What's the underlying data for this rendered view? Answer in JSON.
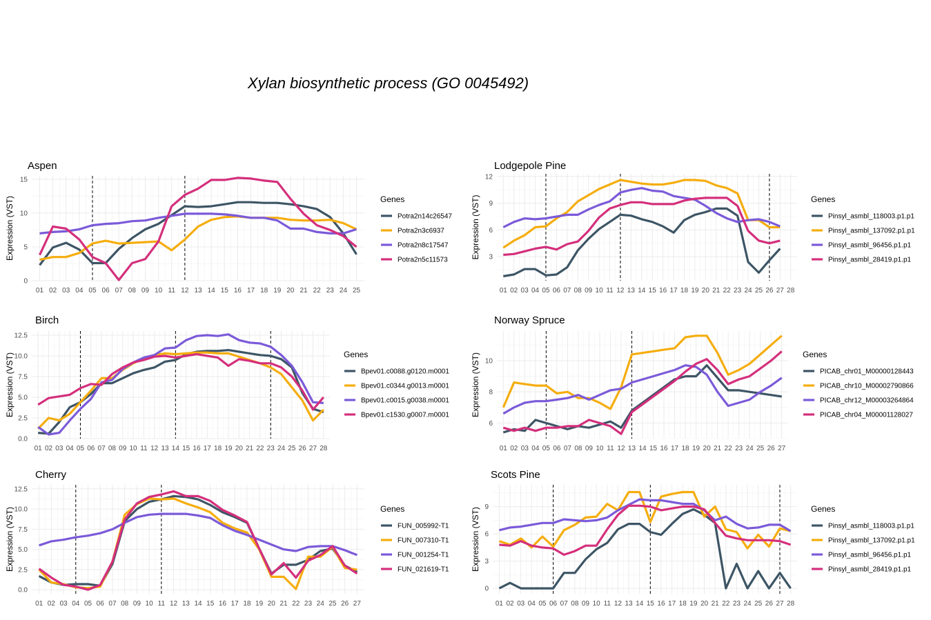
{
  "title": "Xylan biosynthetic process  (GO 0045492)",
  "colors": [
    "#3d5565",
    "#f5ad0e",
    "#7b5ad9",
    "#d42f7c"
  ],
  "chart_data": [
    {
      "type": "line",
      "title": "Aspen",
      "ylabel": "Expression (VST)",
      "legend_title": "Genes",
      "legend_position": "right",
      "grid": true,
      "x": [
        "01",
        "02",
        "03",
        "04",
        "05",
        "06",
        "07",
        "08",
        "09",
        "10",
        "11",
        "12",
        "13",
        "14",
        "15",
        "16",
        "17",
        "18",
        "19",
        "20",
        "21",
        "22",
        "23",
        "24",
        "25"
      ],
      "ylim": [
        0,
        15.5
      ],
      "yticks": [
        0,
        5,
        10,
        15
      ],
      "ytick_labels": [
        "0",
        "5",
        "10",
        "15"
      ],
      "vlines": [
        "05",
        "12"
      ],
      "series": [
        {
          "name": "Potra2n14c26547",
          "values": [
            2.3,
            4.9,
            5.6,
            4.6,
            2.6,
            2.6,
            4.7,
            6.3,
            7.6,
            8.4,
            9.7,
            11.0,
            10.9,
            11.0,
            11.3,
            11.6,
            11.6,
            11.5,
            11.5,
            11.3,
            11.0,
            10.6,
            9.4,
            7.0,
            3.9
          ]
        },
        {
          "name": "Potra2n3c6937",
          "values": [
            3.1,
            3.5,
            3.5,
            4.1,
            5.5,
            5.9,
            5.5,
            5.6,
            5.7,
            5.8,
            4.5,
            6.1,
            8.0,
            9.0,
            9.4,
            9.5,
            9.3,
            9.3,
            9.3,
            9.0,
            8.9,
            8.9,
            9.0,
            8.5,
            7.6
          ]
        },
        {
          "name": "Potra2n8c17547",
          "values": [
            7.0,
            7.2,
            7.3,
            7.6,
            8.2,
            8.4,
            8.5,
            8.8,
            8.9,
            9.3,
            9.6,
            9.9,
            9.9,
            9.9,
            9.8,
            9.6,
            9.3,
            9.3,
            8.9,
            7.7,
            7.7,
            7.2,
            7.0,
            7.0,
            7.6
          ]
        },
        {
          "name": "Potra2n5c11573",
          "values": [
            3.8,
            8.0,
            7.7,
            6.1,
            3.5,
            2.6,
            0.1,
            2.6,
            3.2,
            5.8,
            11.0,
            12.7,
            13.6,
            14.9,
            14.9,
            15.2,
            15.1,
            14.8,
            14.6,
            12.1,
            9.9,
            8.2,
            7.5,
            6.6,
            5.0
          ]
        }
      ]
    },
    {
      "type": "line",
      "title": "Lodgepole Pine",
      "ylabel": "Expression (VST)",
      "legend_title": "Genes",
      "legend_position": "right",
      "grid": true,
      "x": [
        "01",
        "02",
        "03",
        "04",
        "05",
        "06",
        "07",
        "08",
        "09",
        "10",
        "11",
        "12",
        "13",
        "14",
        "15",
        "16",
        "17",
        "18",
        "19",
        "20",
        "21",
        "22",
        "23",
        "24",
        "25",
        "26",
        "27",
        "28"
      ],
      "ylim": [
        0.3,
        12.3
      ],
      "yticks": [
        3,
        6,
        9,
        12
      ],
      "ytick_labels": [
        "3",
        "6",
        "9",
        "12"
      ],
      "vlines": [
        "05",
        "12",
        "26"
      ],
      "series": [
        {
          "name": "Pinsyl_asmbl_118003.p1.p1",
          "values": [
            0.8,
            1.0,
            1.6,
            1.6,
            0.9,
            1.0,
            1.8,
            3.7,
            5.0,
            6.1,
            6.9,
            7.7,
            7.6,
            7.2,
            6.9,
            6.4,
            5.7,
            7.1,
            7.7,
            8.0,
            8.4,
            8.4,
            7.6,
            2.4,
            1.2,
            2.6,
            3.9,
            null
          ]
        },
        {
          "name": "Pinsyl_asmbl_137092.p1.p1",
          "values": [
            4.0,
            4.8,
            5.4,
            6.3,
            6.4,
            7.3,
            8.0,
            9.2,
            9.9,
            10.6,
            11.1,
            11.6,
            11.4,
            11.2,
            11.1,
            11.1,
            11.3,
            11.6,
            11.6,
            11.5,
            11.0,
            10.7,
            10.1,
            7.1,
            7.1,
            6.3,
            6.3,
            null
          ]
        },
        {
          "name": "Pinsyl_asmbl_96456.p1.p1",
          "values": [
            6.3,
            6.9,
            7.3,
            7.2,
            7.3,
            7.5,
            7.7,
            7.7,
            8.3,
            8.8,
            9.2,
            10.2,
            10.5,
            10.7,
            10.4,
            10.3,
            9.8,
            9.6,
            9.4,
            8.7,
            7.9,
            7.3,
            6.9,
            7.1,
            7.2,
            6.9,
            6.4,
            null
          ]
        },
        {
          "name": "Pinsyl_asmbl_28419.p1.p1",
          "values": [
            3.2,
            3.3,
            3.6,
            3.9,
            4.1,
            3.8,
            4.4,
            4.7,
            5.9,
            7.4,
            8.4,
            8.8,
            9.1,
            9.1,
            8.9,
            8.9,
            8.9,
            9.3,
            9.5,
            9.6,
            9.6,
            9.6,
            8.7,
            5.9,
            4.8,
            4.5,
            4.8,
            null
          ]
        }
      ]
    },
    {
      "type": "line",
      "title": "Birch",
      "ylabel": "Expression (VST)",
      "legend_title": "Genes",
      "legend_position": "right",
      "grid": true,
      "x": [
        "01",
        "02",
        "03",
        "04",
        "05",
        "06",
        "07",
        "08",
        "09",
        "10",
        "11",
        "12",
        "13",
        "14",
        "15",
        "16",
        "17",
        "18",
        "19",
        "20",
        "21",
        "22",
        "23",
        "24",
        "25",
        "26",
        "27",
        "28"
      ],
      "ylim": [
        0,
        13
      ],
      "yticks": [
        0,
        2.5,
        5,
        7.5,
        10,
        12.5
      ],
      "ytick_labels": [
        "0.0",
        "2.5",
        "5.0",
        "7.5",
        "10.0",
        "12.5"
      ],
      "vlines": [
        "05",
        "14",
        "23"
      ],
      "series": [
        {
          "name": "Bpev01.c0088.g0120.m0001",
          "values": [
            0.7,
            0.6,
            2.0,
            3.8,
            4.4,
            5.4,
            6.7,
            6.7,
            7.3,
            7.9,
            8.3,
            8.6,
            9.3,
            9.5,
            10.2,
            10.5,
            10.6,
            10.6,
            10.7,
            10.5,
            10.3,
            10.1,
            10.0,
            9.6,
            8.6,
            5.5,
            3.6,
            3.2
          ]
        },
        {
          "name": "Bpev01.c0344.g0013.m0001",
          "values": [
            1.2,
            2.5,
            2.2,
            3.0,
            4.4,
            5.8,
            7.3,
            7.3,
            8.3,
            9.1,
            9.7,
            10.1,
            10.3,
            10.2,
            10.3,
            10.4,
            10.4,
            10.3,
            10.3,
            9.9,
            9.5,
            9.1,
            8.6,
            7.8,
            6.2,
            4.6,
            2.2,
            3.5
          ]
        },
        {
          "name": "Bpev01.c0015.g0038.m0001",
          "values": [
            1.4,
            0.5,
            0.7,
            2.2,
            3.6,
            4.8,
            6.8,
            7.1,
            8.4,
            9.2,
            9.8,
            10.1,
            10.9,
            11.0,
            11.9,
            12.4,
            12.5,
            12.4,
            12.6,
            11.9,
            11.6,
            11.5,
            11.1,
            10.1,
            8.8,
            6.8,
            4.4,
            4.3
          ]
        },
        {
          "name": "Bpev01.c1530.g0007.m0001",
          "values": [
            4.1,
            4.9,
            5.1,
            5.3,
            6.1,
            6.6,
            6.5,
            7.8,
            8.6,
            9.2,
            9.5,
            9.9,
            10.0,
            9.8,
            10.0,
            10.2,
            10.0,
            9.8,
            8.8,
            9.6,
            9.4,
            9.1,
            9.1,
            8.6,
            7.5,
            5.8,
            3.5,
            5.0
          ]
        }
      ]
    },
    {
      "type": "line",
      "title": "Norway Spruce",
      "ylabel": "Expression (VST)",
      "legend_title": "Genes",
      "legend_position": "right",
      "grid": true,
      "x": [
        "01",
        "02",
        "03",
        "04",
        "05",
        "06",
        "07",
        "08",
        "09",
        "10",
        "11",
        "12",
        "13",
        "14",
        "15",
        "16",
        "17",
        "18",
        "19",
        "20",
        "21",
        "22",
        "23",
        "24",
        "25",
        "26",
        "27"
      ],
      "ylim": [
        5,
        11.9
      ],
      "yticks": [
        6,
        8,
        10
      ],
      "ytick_labels": [
        "6",
        "8",
        "10"
      ],
      "vlines": [
        "05",
        "13"
      ],
      "series": [
        {
          "name": "PICAB_chr01_M00000128443",
          "values": [
            5.4,
            5.6,
            5.5,
            6.2,
            6.0,
            5.8,
            5.6,
            5.8,
            5.7,
            5.9,
            6.1,
            5.7,
            6.8,
            7.3,
            7.8,
            8.3,
            8.8,
            9.0,
            9.0,
            9.7,
            8.9,
            8.1,
            8.1,
            8.0,
            7.9,
            7.8,
            7.7
          ]
        },
        {
          "name": "PICAB_chr10_M00002790866",
          "values": [
            7.0,
            8.6,
            8.5,
            8.4,
            8.4,
            7.9,
            8.0,
            7.6,
            7.6,
            7.3,
            6.9,
            8.3,
            10.4,
            10.5,
            10.6,
            10.7,
            10.8,
            11.5,
            11.6,
            11.6,
            10.5,
            9.1,
            9.4,
            9.8,
            10.4,
            11.0,
            11.6
          ]
        },
        {
          "name": "PICAB_chr12_M00003264864",
          "values": [
            6.6,
            7.0,
            7.3,
            7.4,
            7.4,
            7.5,
            7.6,
            7.8,
            7.5,
            7.8,
            8.1,
            8.2,
            8.6,
            8.8,
            9.0,
            9.2,
            9.4,
            9.7,
            9.6,
            9.1,
            8.0,
            7.1,
            7.3,
            7.5,
            8.0,
            8.4,
            8.9
          ]
        },
        {
          "name": "PICAB_chr04_M00001128027",
          "values": [
            5.7,
            5.5,
            5.7,
            5.5,
            5.7,
            5.7,
            5.8,
            5.8,
            6.2,
            6.0,
            5.8,
            5.3,
            6.7,
            7.2,
            7.7,
            8.2,
            8.7,
            9.3,
            9.8,
            10.1,
            9.4,
            8.5,
            8.8,
            9.0,
            9.5,
            10.0,
            10.6
          ]
        }
      ]
    },
    {
      "type": "line",
      "title": "Cherry",
      "ylabel": "Expression (VST)",
      "legend_title": "Genes",
      "legend_position": "right",
      "grid": true,
      "x": [
        "01",
        "02",
        "03",
        "04",
        "05",
        "06",
        "07",
        "08",
        "09",
        "10",
        "11",
        "12",
        "13",
        "14",
        "15",
        "16",
        "17",
        "18",
        "19",
        "20",
        "21",
        "22",
        "23",
        "24",
        "25",
        "26",
        "27"
      ],
      "ylim": [
        -0.5,
        13
      ],
      "yticks": [
        0,
        2.5,
        5,
        7.5,
        10,
        12.5
      ],
      "ytick_labels": [
        "0.0",
        "2.5",
        "5.0",
        "7.5",
        "10.0",
        "12.5"
      ],
      "vlines": [
        "04",
        "11"
      ],
      "series": [
        {
          "name": "FUN_005992-T1",
          "values": [
            1.7,
            0.9,
            0.6,
            0.7,
            0.7,
            0.5,
            3.2,
            8.5,
            10.0,
            10.9,
            11.2,
            11.6,
            11.5,
            11.2,
            10.5,
            9.6,
            9.0,
            8.3,
            5.1,
            2.0,
            3.1,
            3.1,
            3.7,
            4.8,
            5.1,
            3.0,
            2.2
          ]
        },
        {
          "name": "FUN_007310-T1",
          "values": [
            2.5,
            0.9,
            0.7,
            0.3,
            0.2,
            0.4,
            3.5,
            9.3,
            10.6,
            11.3,
            11.2,
            11.3,
            10.7,
            10.2,
            9.6,
            8.3,
            7.6,
            7.1,
            5.0,
            1.6,
            1.6,
            0.1,
            4.1,
            4.1,
            5.3,
            2.7,
            2.5
          ]
        },
        {
          "name": "FUN_001254-T1",
          "values": [
            5.5,
            6.0,
            6.2,
            6.5,
            6.7,
            7.0,
            7.5,
            8.3,
            9.0,
            9.3,
            9.4,
            9.4,
            9.4,
            9.2,
            8.9,
            8.0,
            7.3,
            6.8,
            6.2,
            5.6,
            5.0,
            4.8,
            5.3,
            5.4,
            5.4,
            4.9,
            4.3
          ]
        },
        {
          "name": "FUN_021619-T1",
          "values": [
            2.6,
            1.5,
            0.6,
            0.4,
            0.0,
            0.6,
            3.5,
            8.7,
            10.7,
            11.5,
            11.8,
            12.2,
            11.6,
            11.6,
            11.0,
            9.9,
            9.2,
            8.4,
            5.1,
            1.9,
            3.3,
            1.5,
            3.6,
            4.3,
            5.4,
            3.0,
            2.0
          ]
        }
      ]
    },
    {
      "type": "line",
      "title": "Scots Pine",
      "ylabel": "Expression (VST)",
      "legend_title": "Genes",
      "legend_position": "right",
      "grid": true,
      "x": [
        "01",
        "02",
        "03",
        "04",
        "05",
        "06",
        "07",
        "08",
        "09",
        "10",
        "11",
        "12",
        "13",
        "14",
        "15",
        "16",
        "17",
        "18",
        "19",
        "20",
        "21",
        "22",
        "23",
        "24",
        "25",
        "26",
        "27",
        "28"
      ],
      "ylim": [
        -0.6,
        11.4
      ],
      "yticks": [
        0,
        3,
        6,
        9
      ],
      "ytick_labels": [
        "0",
        "3",
        "6",
        "9"
      ],
      "vlines": [
        "06",
        "15",
        "27"
      ],
      "series": [
        {
          "name": "Pinsyl_asmbl_118003.p1.p1",
          "values": [
            0.0,
            0.6,
            0.0,
            0.0,
            0.0,
            0.0,
            1.7,
            1.7,
            3.2,
            4.3,
            5.0,
            6.5,
            7.1,
            7.1,
            6.2,
            5.9,
            7.1,
            8.2,
            8.7,
            8.1,
            7.2,
            0.0,
            2.7,
            0.0,
            1.9,
            0.0,
            1.7,
            0.0
          ]
        },
        {
          "name": "Pinsyl_asmbl_137092.p1.p1",
          "values": [
            5.2,
            4.8,
            5.5,
            4.5,
            5.7,
            4.6,
            6.4,
            7.0,
            7.8,
            7.9,
            9.3,
            8.6,
            10.6,
            10.6,
            7.3,
            10.1,
            10.4,
            10.6,
            10.6,
            7.9,
            9.0,
            6.5,
            6.2,
            4.4,
            5.9,
            4.6,
            6.6,
            6.3
          ]
        },
        {
          "name": "Pinsyl_asmbl_96456.p1.p1",
          "values": [
            6.4,
            6.7,
            6.8,
            7.0,
            7.2,
            7.2,
            7.6,
            7.5,
            7.4,
            7.5,
            7.8,
            8.6,
            9.2,
            9.8,
            9.7,
            9.7,
            9.5,
            9.3,
            9.3,
            8.6,
            7.5,
            7.9,
            7.1,
            6.6,
            6.7,
            7.0,
            7.0,
            6.3
          ]
        },
        {
          "name": "Pinsyl_asmbl_28419.p1.p1",
          "values": [
            4.8,
            4.7,
            5.2,
            4.7,
            4.5,
            4.4,
            3.7,
            4.1,
            4.7,
            4.7,
            6.5,
            8.1,
            9.1,
            9.1,
            9.0,
            8.6,
            8.8,
            9.0,
            9.0,
            8.7,
            7.2,
            5.8,
            5.5,
            5.3,
            5.3,
            5.3,
            5.2,
            4.8
          ]
        }
      ]
    }
  ]
}
